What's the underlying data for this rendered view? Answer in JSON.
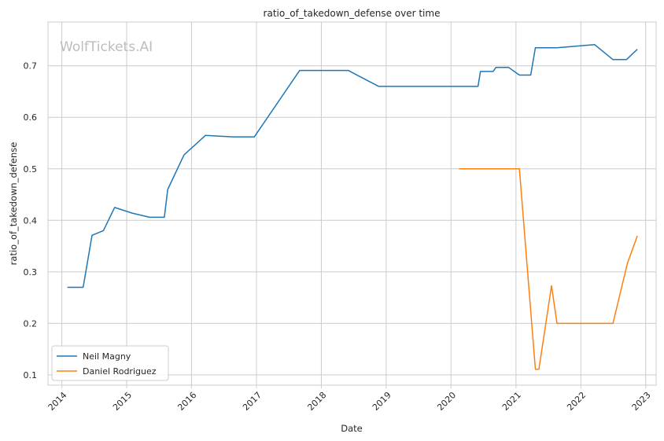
{
  "chart_data": {
    "type": "line",
    "title": "ratio_of_takedown_defense over time",
    "xlabel": "Date",
    "ylabel": "ratio_of_takedown_defense",
    "watermark": "WolfTickets.AI",
    "xlim": [
      "2013-10-15",
      "2023-03-01"
    ],
    "ylim": [
      0.08,
      0.785
    ],
    "x_ticks": [
      "2014-01-01",
      "2015-01-01",
      "2016-01-01",
      "2017-01-01",
      "2018-01-01",
      "2019-01-01",
      "2020-01-01",
      "2021-01-01",
      "2022-01-01",
      "2023-01-01"
    ],
    "x_tick_labels": [
      "2014",
      "2015",
      "2016",
      "2017",
      "2018",
      "2019",
      "2020",
      "2021",
      "2022",
      "2023"
    ],
    "y_ticks": [
      0.1,
      0.2,
      0.3,
      0.4,
      0.5,
      0.6,
      0.7
    ],
    "y_tick_labels": [
      "0.1",
      "0.2",
      "0.3",
      "0.4",
      "0.5",
      "0.6",
      "0.7"
    ],
    "grid": true,
    "legend_position": "lower-left",
    "series": [
      {
        "name": "Neil Magny",
        "color": "#1f77b4",
        "points": [
          [
            "2014-02-01",
            0.27
          ],
          [
            "2014-05-01",
            0.27
          ],
          [
            "2014-06-20",
            0.371
          ],
          [
            "2014-08-23",
            0.38
          ],
          [
            "2014-10-25",
            0.425
          ],
          [
            "2015-02-01",
            0.414
          ],
          [
            "2015-05-10",
            0.406
          ],
          [
            "2015-08-01",
            0.406
          ],
          [
            "2015-08-20",
            0.46
          ],
          [
            "2015-11-20",
            0.527
          ],
          [
            "2016-03-20",
            0.565
          ],
          [
            "2016-08-20",
            0.562
          ],
          [
            "2016-12-20",
            0.562
          ],
          [
            "2017-09-01",
            0.691
          ],
          [
            "2018-06-01",
            0.691
          ],
          [
            "2018-11-20",
            0.66
          ],
          [
            "2020-06-01",
            0.66
          ],
          [
            "2020-06-15",
            0.689
          ],
          [
            "2020-08-25",
            0.689
          ],
          [
            "2020-09-10",
            0.697
          ],
          [
            "2020-11-20",
            0.697
          ],
          [
            "2021-01-20",
            0.682
          ],
          [
            "2021-03-25",
            0.682
          ],
          [
            "2021-04-20",
            0.735
          ],
          [
            "2021-08-20",
            0.735
          ],
          [
            "2022-03-20",
            0.741
          ],
          [
            "2022-07-01",
            0.712
          ],
          [
            "2022-09-15",
            0.712
          ],
          [
            "2022-11-15",
            0.732
          ]
        ]
      },
      {
        "name": "Daniel Rodriguez",
        "color": "#ff7f0e",
        "points": [
          [
            "2020-02-15",
            0.5
          ],
          [
            "2020-07-01",
            0.5
          ],
          [
            "2021-01-20",
            0.5
          ],
          [
            "2021-04-20",
            0.111
          ],
          [
            "2021-05-10",
            0.111
          ],
          [
            "2021-07-20",
            0.273
          ],
          [
            "2021-08-20",
            0.2
          ],
          [
            "2022-01-01",
            0.2
          ],
          [
            "2022-07-01",
            0.2
          ],
          [
            "2022-09-20",
            0.316
          ],
          [
            "2022-11-15",
            0.37
          ]
        ]
      }
    ]
  }
}
